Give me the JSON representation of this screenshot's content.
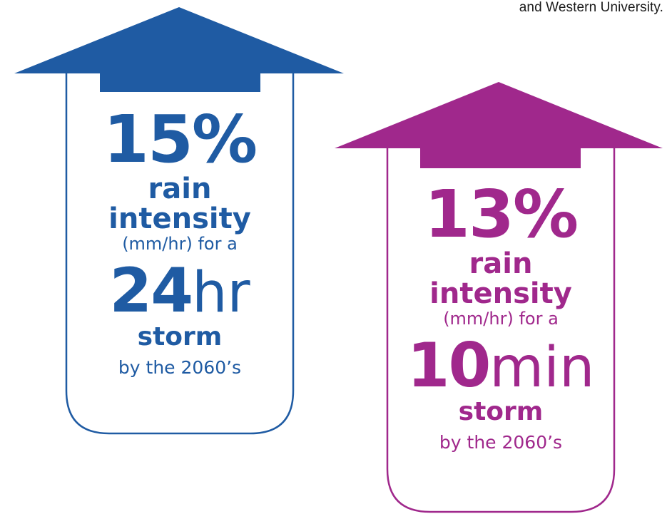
{
  "caption": "and Western University.",
  "colors": {
    "blue": "#1f5ba3",
    "purple": "#a0288c"
  },
  "panels": [
    {
      "percent": "15%",
      "line1": "rain",
      "line2": "intensity",
      "unit": "(mm/hr) for a",
      "duration_num": "24",
      "duration_unit": "hr",
      "storm": "storm",
      "by": "by the 2060’s",
      "color": "blue"
    },
    {
      "percent": "13%",
      "line1": "rain",
      "line2": "intensity",
      "unit": "(mm/hr) for a",
      "duration_num": "10",
      "duration_unit": "min",
      "storm": "storm",
      "by": "by the 2060’s",
      "color": "purple"
    }
  ]
}
